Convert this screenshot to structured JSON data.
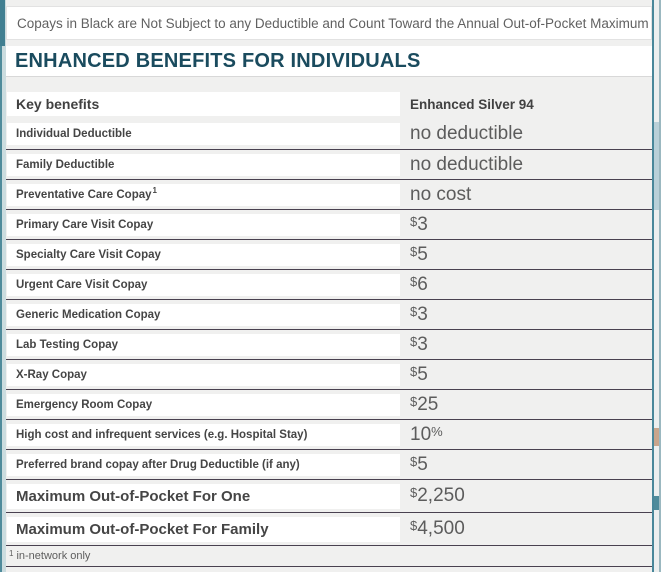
{
  "banner": {
    "text": "Copays in Black are Not Subject to any Deductible and Count Toward the Annual Out-of-Pocket Maximum"
  },
  "title": "ENHANCED BENEFITS FOR INDIVIDUALS",
  "table": {
    "header": {
      "benefits_label": "Key benefits",
      "plan_name": "Enhanced Silver 94"
    },
    "rows": [
      {
        "label": "Individual Deductible",
        "sup": "",
        "prefix": "",
        "value": "no deductible",
        "suffix": "",
        "emphasis": false
      },
      {
        "label": "Family Deductible",
        "sup": "",
        "prefix": "",
        "value": "no deductible",
        "suffix": "",
        "emphasis": false
      },
      {
        "label": "Preventative Care Copay",
        "sup": "1",
        "prefix": "",
        "value": "no cost",
        "suffix": "",
        "emphasis": false
      },
      {
        "label": "Primary Care Visit Copay",
        "sup": "",
        "prefix": "$",
        "value": "3",
        "suffix": "",
        "emphasis": false
      },
      {
        "label": "Specialty Care Visit Copay",
        "sup": "",
        "prefix": "$",
        "value": "5",
        "suffix": "",
        "emphasis": false
      },
      {
        "label": "Urgent Care Visit Copay",
        "sup": "",
        "prefix": "$",
        "value": "6",
        "suffix": "",
        "emphasis": false
      },
      {
        "label": "Generic Medication Copay",
        "sup": "",
        "prefix": "$",
        "value": "3",
        "suffix": "",
        "emphasis": false
      },
      {
        "label": "Lab Testing Copay",
        "sup": "",
        "prefix": "$",
        "value": "3",
        "suffix": "",
        "emphasis": false
      },
      {
        "label": "X-Ray Copay",
        "sup": "",
        "prefix": "$",
        "value": "5",
        "suffix": "",
        "emphasis": false
      },
      {
        "label": "Emergency Room Copay",
        "sup": "",
        "prefix": "$",
        "value": "25",
        "suffix": "",
        "emphasis": false
      },
      {
        "label": "High cost and infrequent services (e.g. Hospital Stay)",
        "sup": "",
        "prefix": "",
        "value": "10",
        "suffix": "%",
        "emphasis": false
      },
      {
        "label": "Preferred brand copay after Drug Deductible (if any)",
        "sup": "",
        "prefix": "$",
        "value": "5",
        "suffix": "",
        "emphasis": false
      },
      {
        "label": "Maximum Out-of-Pocket For One",
        "sup": "",
        "prefix": "$",
        "value": "2,250",
        "suffix": "",
        "emphasis": true
      },
      {
        "label": "Maximum Out-of-Pocket For Family",
        "sup": "",
        "prefix": "$",
        "value": "4,500",
        "suffix": "",
        "emphasis": true
      }
    ],
    "footnote": {
      "marker": "1",
      "text": "in-network only"
    }
  },
  "colors": {
    "accent_teal": "#4f8b9b",
    "title_text": "#1a4b5e",
    "separator": "#494150",
    "row_background": "#f0f0ef",
    "label_text": "#454545",
    "value_text": "#5c5c5c"
  }
}
